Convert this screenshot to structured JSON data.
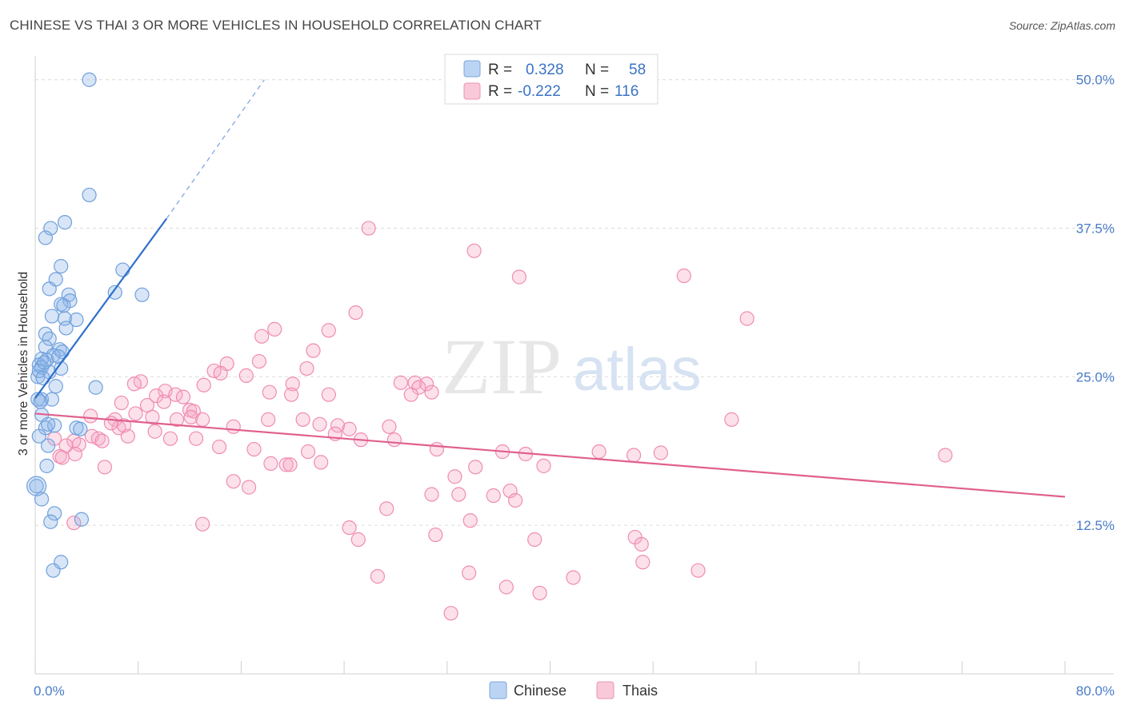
{
  "header": {
    "title": "CHINESE VS THAI 3 OR MORE VEHICLES IN HOUSEHOLD CORRELATION CHART",
    "source": "Source: ZipAtlas.com"
  },
  "legend_box": {
    "rows": [
      {
        "r_label": "R =",
        "r_value": "0.328",
        "n_label": "N =",
        "n_value": "58"
      },
      {
        "r_label": "R =",
        "r_value": "-0.222",
        "n_label": "N =",
        "n_value": "116"
      }
    ]
  },
  "watermark": {
    "zip": "ZIP",
    "atlas": "atlas"
  },
  "chart_data": {
    "type": "scatter",
    "title": "CHINESE VS THAI 3 OR MORE VEHICLES IN HOUSEHOLD CORRELATION CHART",
    "ylabel": "3 or more Vehicles in Household",
    "xlim": [
      0,
      80
    ],
    "ylim": [
      0,
      52
    ],
    "x_tick_labels": [
      "0.0%",
      "80.0%"
    ],
    "y_ticks": [
      12.5,
      25.0,
      37.5,
      50.0
    ],
    "y_tick_labels": [
      "12.5%",
      "25.0%",
      "37.5%",
      "50.0%"
    ],
    "grid": true,
    "legend_placement": "top-center and bottom",
    "colors": {
      "chinese": "#6fa0dc",
      "chinese_line": "#2e6fcc",
      "thai": "#f08cb0",
      "thai_line": "#e0608e"
    },
    "series": [
      {
        "name": "Chinese",
        "R": 0.328,
        "N": 58,
        "trend": {
          "x0": 0.0,
          "y0": 23.2,
          "x1": 10.2,
          "y1": 38.3,
          "dash_x1": 17.8,
          "dash_y1": 50.0
        },
        "points": [
          [
            4.2,
            50.0
          ],
          [
            4.2,
            40.3
          ],
          [
            2.3,
            38.0
          ],
          [
            1.2,
            37.5
          ],
          [
            0.8,
            36.7
          ],
          [
            2.0,
            34.3
          ],
          [
            6.8,
            34.0
          ],
          [
            1.6,
            33.2
          ],
          [
            1.1,
            32.4
          ],
          [
            6.2,
            32.1
          ],
          [
            2.6,
            31.9
          ],
          [
            8.3,
            31.9
          ],
          [
            2.7,
            31.4
          ],
          [
            2.0,
            31.1
          ],
          [
            1.3,
            30.1
          ],
          [
            2.3,
            29.9
          ],
          [
            3.2,
            29.8
          ],
          [
            2.4,
            29.1
          ],
          [
            0.8,
            28.6
          ],
          [
            1.1,
            28.2
          ],
          [
            0.8,
            27.5
          ],
          [
            1.9,
            27.3
          ],
          [
            2.1,
            27.1
          ],
          [
            1.4,
            26.8
          ],
          [
            0.5,
            26.5
          ],
          [
            0.9,
            26.4
          ],
          [
            0.3,
            26.0
          ],
          [
            0.5,
            25.8
          ],
          [
            1.1,
            25.4
          ],
          [
            0.2,
            25.0
          ],
          [
            2.0,
            25.7
          ],
          [
            1.6,
            24.2
          ],
          [
            4.7,
            24.1
          ],
          [
            0.5,
            23.1
          ],
          [
            1.3,
            23.1
          ],
          [
            0.2,
            23.1
          ],
          [
            0.5,
            21.8
          ],
          [
            0.8,
            20.7
          ],
          [
            1.5,
            20.9
          ],
          [
            3.2,
            20.7
          ],
          [
            3.5,
            20.6
          ],
          [
            0.3,
            20.0
          ],
          [
            1.0,
            19.2
          ],
          [
            0.9,
            17.5
          ],
          [
            0.1,
            15.8
          ],
          [
            0.5,
            14.7
          ],
          [
            1.5,
            13.5
          ],
          [
            3.6,
            13.0
          ],
          [
            1.2,
            12.8
          ],
          [
            2.0,
            9.4
          ],
          [
            1.4,
            8.7
          ],
          [
            0.3,
            25.5
          ],
          [
            0.6,
            24.9
          ],
          [
            1.8,
            26.7
          ],
          [
            2.2,
            31.0
          ],
          [
            0.4,
            22.9
          ],
          [
            1.0,
            21.0
          ],
          [
            0.7,
            26.2
          ]
        ]
      },
      {
        "name": "Thais",
        "R": -0.222,
        "N": 116,
        "trend": {
          "x0": 0.0,
          "y0": 21.9,
          "x1": 80.0,
          "y1": 14.9
        },
        "points": [
          [
            25.9,
            37.5
          ],
          [
            34.1,
            35.6
          ],
          [
            37.6,
            33.4
          ],
          [
            50.4,
            33.5
          ],
          [
            24.9,
            30.4
          ],
          [
            55.3,
            29.9
          ],
          [
            18.6,
            29.0
          ],
          [
            22.8,
            28.9
          ],
          [
            17.6,
            28.4
          ],
          [
            21.6,
            27.2
          ],
          [
            14.9,
            26.1
          ],
          [
            17.4,
            26.3
          ],
          [
            21.1,
            25.7
          ],
          [
            13.9,
            25.5
          ],
          [
            14.4,
            25.3
          ],
          [
            16.4,
            25.1
          ],
          [
            8.2,
            24.6
          ],
          [
            7.7,
            24.4
          ],
          [
            13.1,
            24.3
          ],
          [
            20.0,
            24.4
          ],
          [
            28.4,
            24.5
          ],
          [
            29.5,
            24.5
          ],
          [
            30.4,
            24.4
          ],
          [
            29.8,
            24.1
          ],
          [
            10.1,
            23.8
          ],
          [
            18.2,
            23.7
          ],
          [
            10.9,
            23.5
          ],
          [
            9.4,
            23.4
          ],
          [
            11.5,
            23.3
          ],
          [
            19.9,
            23.5
          ],
          [
            22.8,
            23.5
          ],
          [
            29.2,
            23.5
          ],
          [
            30.8,
            23.7
          ],
          [
            6.7,
            22.8
          ],
          [
            8.7,
            22.6
          ],
          [
            10.0,
            22.9
          ],
          [
            12.0,
            22.2
          ],
          [
            12.3,
            22.1
          ],
          [
            4.3,
            21.7
          ],
          [
            7.8,
            21.9
          ],
          [
            12.1,
            21.6
          ],
          [
            9.1,
            21.6
          ],
          [
            11.0,
            21.4
          ],
          [
            6.2,
            21.4
          ],
          [
            13.0,
            21.4
          ],
          [
            15.4,
            20.8
          ],
          [
            18.1,
            21.4
          ],
          [
            20.8,
            21.4
          ],
          [
            22.1,
            21.0
          ],
          [
            23.5,
            20.9
          ],
          [
            24.4,
            20.6
          ],
          [
            27.5,
            20.8
          ],
          [
            6.5,
            20.7
          ],
          [
            6.9,
            20.9
          ],
          [
            9.3,
            20.4
          ],
          [
            5.9,
            21.1
          ],
          [
            23.3,
            20.2
          ],
          [
            4.4,
            20.0
          ],
          [
            4.9,
            19.8
          ],
          [
            5.2,
            19.6
          ],
          [
            7.2,
            20.0
          ],
          [
            1.5,
            19.8
          ],
          [
            3.0,
            19.6
          ],
          [
            10.5,
            19.8
          ],
          [
            12.5,
            19.8
          ],
          [
            25.3,
            19.7
          ],
          [
            27.9,
            19.7
          ],
          [
            14.3,
            19.1
          ],
          [
            2.4,
            19.2
          ],
          [
            3.4,
            19.3
          ],
          [
            17.0,
            18.9
          ],
          [
            21.2,
            18.7
          ],
          [
            3.1,
            18.5
          ],
          [
            1.9,
            18.3
          ],
          [
            2.1,
            18.2
          ],
          [
            31.2,
            18.9
          ],
          [
            36.3,
            18.7
          ],
          [
            38.1,
            18.5
          ],
          [
            43.8,
            18.7
          ],
          [
            46.5,
            18.4
          ],
          [
            48.6,
            18.6
          ],
          [
            70.7,
            18.4
          ],
          [
            5.4,
            17.4
          ],
          [
            18.3,
            17.7
          ],
          [
            19.5,
            17.6
          ],
          [
            19.8,
            17.6
          ],
          [
            22.2,
            17.8
          ],
          [
            34.2,
            17.4
          ],
          [
            39.5,
            17.5
          ],
          [
            32.6,
            16.6
          ],
          [
            15.4,
            16.2
          ],
          [
            16.6,
            15.7
          ],
          [
            30.8,
            15.1
          ],
          [
            32.9,
            15.1
          ],
          [
            35.6,
            15.0
          ],
          [
            36.9,
            15.4
          ],
          [
            37.3,
            14.6
          ],
          [
            27.3,
            13.9
          ],
          [
            33.8,
            12.9
          ],
          [
            24.4,
            12.3
          ],
          [
            13.0,
            12.6
          ],
          [
            46.6,
            11.5
          ],
          [
            31.1,
            11.7
          ],
          [
            25.1,
            11.3
          ],
          [
            47.1,
            10.9
          ],
          [
            47.2,
            9.4
          ],
          [
            51.5,
            8.7
          ],
          [
            26.6,
            8.2
          ],
          [
            33.7,
            8.5
          ],
          [
            38.8,
            11.3
          ],
          [
            41.8,
            8.1
          ],
          [
            36.6,
            7.3
          ],
          [
            39.2,
            6.8
          ],
          [
            32.3,
            5.1
          ],
          [
            54.1,
            21.4
          ],
          [
            3.0,
            12.7
          ]
        ]
      }
    ]
  },
  "bottom_legend": {
    "items": [
      {
        "label": "Chinese"
      },
      {
        "label": "Thais"
      }
    ]
  }
}
